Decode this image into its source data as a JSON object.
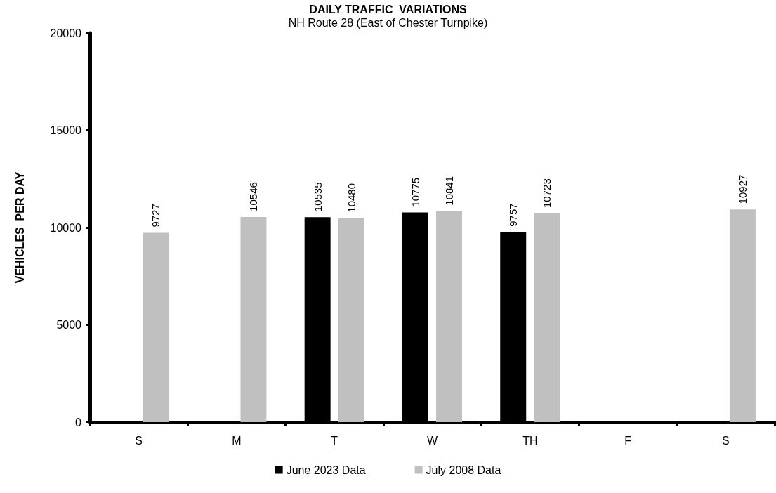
{
  "chart_data": {
    "type": "bar",
    "title": "DAILY TRAFFIC  VARIATIONS",
    "subtitle": "NH Route 28 (East of Chester Turnpike)",
    "ylabel": "VEHICLES  PER DAY",
    "categories": [
      "S",
      "M",
      "T",
      "W",
      "TH",
      "F",
      "S"
    ],
    "series": [
      {
        "name": "June 2023 Data",
        "color": "#000000",
        "values": [
          null,
          null,
          10535,
          10775,
          9757,
          null,
          null
        ]
      },
      {
        "name": "July 2008 Data",
        "color": "#c0c0c0",
        "values": [
          9727,
          10546,
          10480,
          10841,
          10723,
          null,
          10927
        ]
      }
    ],
    "ylim": [
      0,
      20000
    ],
    "yticks": [
      0,
      5000,
      10000,
      15000,
      20000
    ],
    "grid": false,
    "legend": "bottom",
    "data_labels": true
  }
}
